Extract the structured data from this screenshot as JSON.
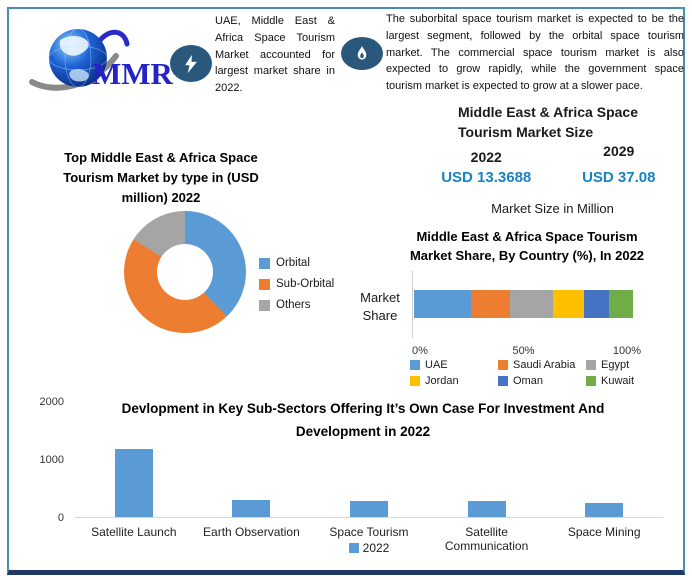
{
  "logo": {
    "text": "MMR"
  },
  "highlights": [
    {
      "icon": "lightning-icon",
      "text": "UAE, Middle East & Africa Space Tourism Market accounted for largest market share in 2022."
    },
    {
      "icon": "flame-icon",
      "text": "The suborbital space tourism market is expected to be the largest segment, followed by the orbital space tourism market. The commercial space tourism market is also expected to grow rapidly, while the government space tourism market is expected to grow at a slower pace."
    }
  ],
  "market_size": {
    "title": "Middle East & Africa Space Tourism Market Size",
    "columns": [
      {
        "year": "2022",
        "value": "USD 13.3688"
      },
      {
        "year": "2029",
        "value": "USD 37.08"
      }
    ],
    "footnote": "Market Size in Million",
    "value_color": "#1783C4"
  },
  "chart_data": [
    {
      "type": "pie",
      "subtype": "donut",
      "title": "Top Middle East & Africa Space Tourism Market by type in (USD million) 2022",
      "labels": [
        "Orbital",
        "Sub-Orbital",
        "Others"
      ],
      "values_pct": [
        38,
        46,
        16
      ],
      "colors": [
        "#5B9BD5",
        "#ED7D31",
        "#A5A5A5"
      ],
      "legend_position": "right"
    },
    {
      "type": "bar",
      "subtype": "horizontal-stacked",
      "title": "Middle East & Africa Space Tourism Market Share, By Country (%), In 2022",
      "ylabel": "Market Share",
      "x_ticks": [
        "0%",
        "50%",
        "100%"
      ],
      "xlim": [
        0,
        100
      ],
      "series": [
        {
          "name": "UAE",
          "value": 26,
          "color": "#5B9BD5"
        },
        {
          "name": "Saudi Arabia",
          "value": 18,
          "color": "#ED7D31"
        },
        {
          "name": "Egypt",
          "value": 19.5,
          "color": "#A5A5A5"
        },
        {
          "name": "Jordan",
          "value": 14,
          "color": "#FFC000"
        },
        {
          "name": "Oman",
          "value": 11.5,
          "color": "#4472C4"
        },
        {
          "name": "Kuwait",
          "value": 11,
          "color": "#70AD47"
        }
      ],
      "legend_position": "bottom"
    },
    {
      "type": "bar",
      "title": "Devlopment in Key Sub-Sectors Offering It’s Own Case For Investment And Development in 2022",
      "categories": [
        "Satellite Launch",
        "Earth Observation",
        "Space Tourism",
        "Satellite Communication",
        "Space Mining"
      ],
      "series": [
        {
          "name": "2022",
          "values": [
            1180,
            300,
            280,
            270,
            250
          ],
          "color": "#5B9BD5"
        }
      ],
      "y_ticks": [
        0,
        1000,
        2000
      ],
      "ylim": [
        0,
        2000
      ],
      "grid": false,
      "legend_position": "bottom"
    }
  ]
}
